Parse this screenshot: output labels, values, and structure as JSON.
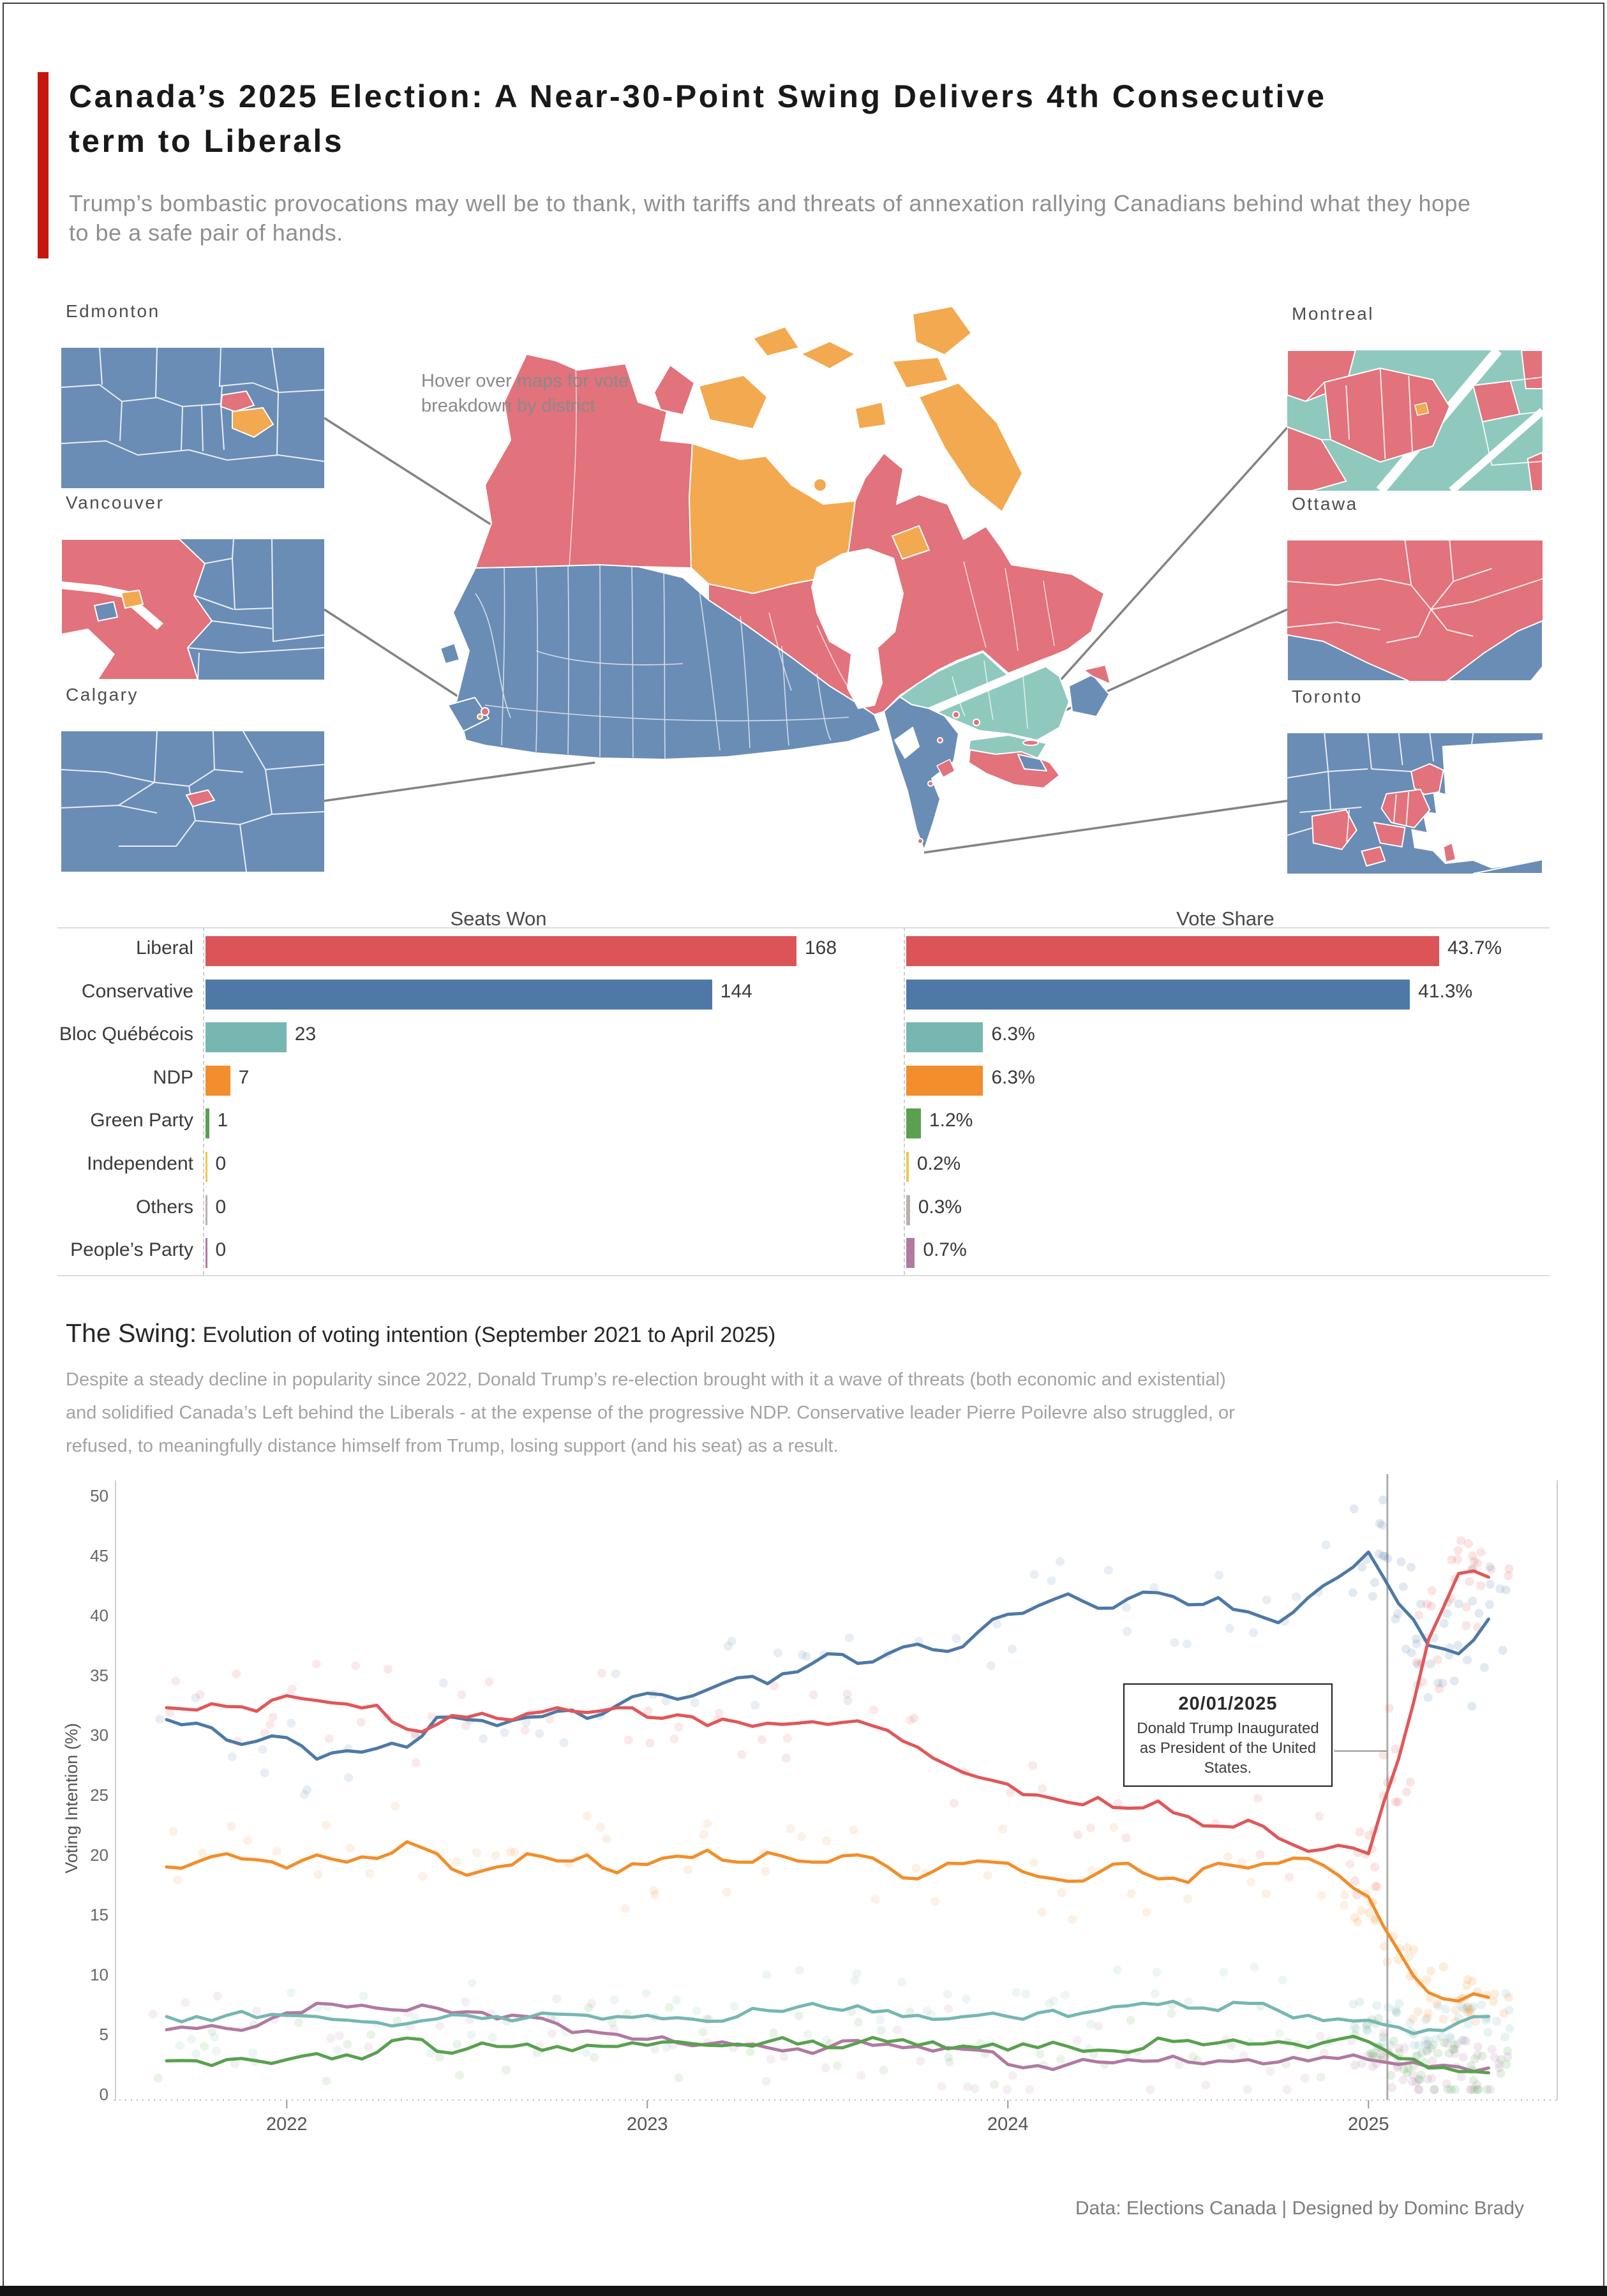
{
  "header": {
    "accent_color": "#C5170E",
    "title_line1": "Canada’s 2025 Election: A Near-30-Point Swing Delivers 4th Consecutive",
    "title_line2": "term to Liberals",
    "subtitle_line1": "Trump’s bombastic provocations may well be to thank, with tariffs and threats of annexation rallying Canadians behind what they hope",
    "subtitle_line2": "to be a safe pair of hands."
  },
  "maps": {
    "hint_line1": "Hover over maps for vote",
    "hint_line2": "breakdown by district",
    "cities": [
      {
        "name": "Edmonton"
      },
      {
        "name": "Vancouver"
      },
      {
        "name": "Calgary"
      },
      {
        "name": "Montreal"
      },
      {
        "name": "Ottawa"
      },
      {
        "name": "Toronto"
      }
    ],
    "region_colors": {
      "liberal": "#E2727B",
      "conservative": "#6A8DB6",
      "bloc": "#8FC9BE",
      "ndp": "#F2A94F",
      "water": "#FFFFFF"
    }
  },
  "parties": [
    {
      "name": "Liberal",
      "color": "#DB5457",
      "seats": 168,
      "seats_label": "168",
      "share": 43.7,
      "share_label": "43.7%"
    },
    {
      "name": "Conservative",
      "color": "#4E79A7",
      "seats": 144,
      "seats_label": "144",
      "share": 41.3,
      "share_label": "41.3%"
    },
    {
      "name": "Bloc Québécois",
      "color": "#76B7B2",
      "seats": 23,
      "seats_label": "23",
      "share": 6.3,
      "share_label": "6.3%"
    },
    {
      "name": "NDP",
      "color": "#F28E2B",
      "seats": 7,
      "seats_label": "7",
      "share": 6.3,
      "share_label": "6.3%"
    },
    {
      "name": "Green Party",
      "color": "#59A14F",
      "seats": 1,
      "seats_label": "1",
      "share": 1.2,
      "share_label": "1.2%"
    },
    {
      "name": "Independent",
      "color": "#EDC948",
      "seats": 0,
      "seats_label": "0",
      "share": 0.2,
      "share_label": "0.2%"
    },
    {
      "name": "Others",
      "color": "#BAB0AC",
      "seats": 0,
      "seats_label": "0",
      "share": 0.3,
      "share_label": "0.3%"
    },
    {
      "name": "People’s Party",
      "color": "#B07AA1",
      "seats": 0,
      "seats_label": "0",
      "share": 0.7,
      "share_label": "0.7%"
    }
  ],
  "seats_chart": {
    "title": "Seats Won"
  },
  "vote_chart": {
    "title": "Vote Share"
  },
  "swing": {
    "heading_strong": "The Swing:",
    "heading_rest": " Evolution of voting intention (September 2021 to April 2025)",
    "para_line1": "Despite a steady decline in popularity since 2022, Donald Trump’s re-election brought with it a wave of threats (both economic and existential)",
    "para_line2": "and solidified Canada’s Left behind the Liberals - at the expense of the progressive NDP. Conservative leader Pierre Poilevre also struggled, or",
    "para_line3": "refused, to meaningfully distance himself from Trump, losing support (and his seat) as a result."
  },
  "chart_data": {
    "type": "line",
    "title": "Evolution of voting intention (September 2021 to April 2025)",
    "xlabel": "",
    "ylabel": "Voting Intention (%)",
    "ylim": [
      0,
      50
    ],
    "yticks": [
      0,
      5,
      10,
      15,
      20,
      25,
      30,
      35,
      40,
      45,
      50
    ],
    "x_start_month": "2021-09",
    "x_tick_labels": [
      "2022",
      "2023",
      "2024",
      "2025"
    ],
    "x_tick_month_index": [
      4,
      16,
      28,
      40
    ],
    "event_line": {
      "month_index": 40.63,
      "date": "20/01/2025"
    },
    "annotation": {
      "date": "20/01/2025",
      "text": "Donald Trump Inaugurated as President of the United States."
    },
    "series": [
      {
        "name": "People’s Party",
        "color": "#B07AA1",
        "values": [
          5.4,
          5.5,
          5.5,
          5.7,
          6.8,
          7.6,
          7.3,
          7.2,
          7.0,
          7.2,
          6.9,
          6.3,
          6.5,
          5.9,
          5.3,
          5.0,
          4.6,
          4.3,
          4.2,
          4.1,
          3.9,
          3.8,
          3.9,
          4.5,
          4.2,
          4.0,
          3.9,
          3.7,
          2.5,
          2.4,
          2.5,
          2.7,
          2.9,
          2.8,
          2.7,
          2.8,
          2.9,
          2.7,
          2.8,
          3.0,
          2.9,
          2.5,
          2.3,
          2.3,
          2.2
        ]
      },
      {
        "name": "Green Party",
        "color": "#59A14F",
        "values": [
          2.8,
          2.8,
          2.9,
          2.8,
          2.9,
          3.4,
          3.3,
          3.5,
          4.7,
          3.6,
          3.8,
          4.0,
          4.2,
          4.0,
          4.1,
          4.0,
          4.1,
          4.4,
          4.1,
          4.2,
          4.4,
          4.2,
          3.9,
          4.3,
          4.4,
          4.1,
          3.8,
          3.9,
          3.7,
          3.9,
          4.0,
          3.7,
          3.5,
          4.7,
          4.5,
          4.3,
          4.2,
          4.4,
          3.9,
          4.6,
          4.4,
          3.0,
          2.2,
          1.9,
          1.8
        ]
      },
      {
        "name": "Bloc Québécois",
        "color": "#76B7B2",
        "values": [
          6.5,
          6.5,
          6.6,
          6.4,
          6.6,
          6.5,
          6.2,
          6.0,
          5.9,
          6.3,
          6.6,
          6.5,
          6.4,
          6.7,
          6.6,
          6.5,
          6.6,
          6.4,
          6.1,
          6.5,
          7.0,
          7.3,
          7.2,
          7.4,
          7.0,
          6.6,
          6.3,
          6.6,
          6.5,
          6.8,
          6.5,
          7.0,
          7.4,
          7.5,
          7.2,
          7.0,
          7.6,
          7.0,
          6.6,
          6.3,
          6.2,
          5.6,
          5.4,
          6.0,
          6.5
        ]
      },
      {
        "name": "NDP",
        "color": "#F28E2B",
        "values": [
          19.0,
          19.4,
          20.1,
          19.6,
          18.9,
          20.0,
          19.4,
          19.7,
          21.1,
          20.1,
          18.3,
          19.0,
          20.1,
          19.5,
          20.0,
          18.5,
          19.2,
          19.9,
          20.4,
          19.4,
          20.2,
          19.5,
          19.4,
          20.0,
          19.0,
          18.0,
          19.3,
          19.5,
          19.3,
          18.2,
          17.8,
          18.5,
          19.3,
          18.0,
          17.7,
          19.3,
          18.9,
          19.3,
          19.7,
          18.3,
          16.5,
          12.0,
          8.5,
          7.8,
          8.1
        ]
      },
      {
        "name": "Conservative",
        "color": "#4E79A7",
        "values": [
          31.3,
          31.0,
          29.6,
          29.5,
          29.8,
          28.0,
          28.7,
          28.9,
          29.0,
          31.5,
          31.3,
          30.8,
          31.5,
          32.0,
          31.4,
          32.5,
          33.5,
          33.0,
          33.8,
          34.8,
          34.3,
          35.3,
          36.8,
          36.0,
          36.8,
          37.6,
          37.0,
          38.6,
          40.1,
          40.8,
          41.8,
          40.6,
          41.4,
          41.9,
          40.9,
          41.5,
          40.3,
          39.4,
          41.5,
          43.2,
          45.3,
          41.0,
          37.5,
          36.8,
          39.7
        ]
      },
      {
        "name": "Liberal",
        "color": "#E15759",
        "values": [
          32.3,
          32.1,
          32.4,
          32.0,
          33.3,
          32.9,
          32.6,
          32.5,
          30.5,
          30.9,
          31.5,
          31.4,
          31.8,
          32.3,
          31.9,
          32.3,
          31.5,
          31.7,
          30.8,
          31.1,
          31.0,
          31.0,
          30.9,
          31.2,
          30.4,
          29.0,
          27.5,
          26.5,
          25.9,
          25.0,
          24.4,
          24.8,
          23.9,
          24.5,
          23.2,
          22.4,
          22.9,
          21.4,
          20.3,
          20.8,
          20.1,
          28.0,
          38.0,
          43.5,
          43.2
        ]
      }
    ]
  },
  "footer": {
    "credit": "Data: Elections Canada | Designed by Dominc Brady"
  }
}
